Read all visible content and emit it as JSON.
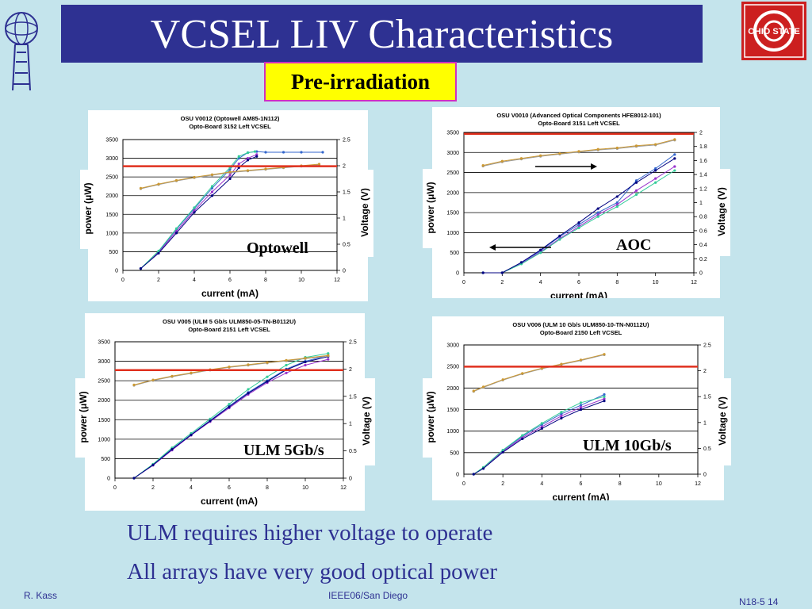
{
  "slide": {
    "title": "VCSEL LIV Characteristics",
    "subtitle": "Pre-irradiation",
    "bullets": [
      "ULM requires higher voltage to operate",
      "All arrays have very good optical power"
    ],
    "footer_left": "R. Kass",
    "footer_center": "IEEE06/San Diego",
    "footer_right": "N18-5 14",
    "logo_text": "OHIO STATE"
  },
  "chart_data": [
    {
      "type": "line",
      "title": "OSU V0012 (Optowell AM85-1N112)",
      "subtitle": "Opto-Board 3152 Left VCSEL",
      "tag": "Optowell",
      "xlabel": "current (mA)",
      "ylabel": "power (μW)",
      "y2label": "Voltage (V)",
      "xlim": [
        0,
        12
      ],
      "ylim": [
        0,
        3500
      ],
      "y2lim": [
        0,
        2.5
      ],
      "xticks": [
        "0",
        "2",
        "4",
        "6",
        "8",
        "10",
        "12"
      ],
      "yticks": [
        "0",
        "500",
        "1000",
        "1500",
        "2000",
        "2500",
        "3000",
        "3500"
      ],
      "y2ticks": [
        "0",
        "0.5",
        "1",
        "1.5",
        "2",
        "2.5"
      ],
      "threshold_line_y2": 1.99,
      "series": [
        {
          "axis": "y",
          "x": [
            1,
            2,
            3,
            4,
            5,
            6,
            6.5,
            7,
            7.5,
            8,
            9,
            10,
            11.2
          ],
          "y": [
            50,
            500,
            1100,
            1650,
            2200,
            2700,
            3000,
            3150,
            3180,
            3160,
            3160,
            3160,
            3160
          ]
        },
        {
          "axis": "y",
          "x": [
            1,
            2,
            3,
            4,
            5,
            6,
            6.5,
            7,
            7.5
          ],
          "y": [
            50,
            480,
            1050,
            1600,
            2100,
            2550,
            2850,
            3000,
            3100
          ]
        },
        {
          "axis": "y",
          "x": [
            1,
            2,
            3,
            4,
            5,
            6,
            6.5,
            7,
            7.4
          ],
          "y": [
            50,
            520,
            1120,
            1680,
            2250,
            2750,
            3050,
            3150,
            3180
          ]
        },
        {
          "axis": "y",
          "x": [
            1,
            2,
            3,
            4,
            5,
            6,
            6.5,
            7,
            7.5
          ],
          "y": [
            50,
            460,
            1000,
            1550,
            2000,
            2450,
            2750,
            2950,
            3050
          ]
        },
        {
          "axis": "y2",
          "x": [
            1,
            2,
            3,
            4,
            5,
            6,
            7,
            8,
            9,
            10,
            11
          ],
          "y": [
            1.56,
            1.64,
            1.71,
            1.77,
            1.82,
            1.87,
            1.9,
            1.93,
            1.96,
            1.99,
            2.02
          ]
        },
        {
          "axis": "y2",
          "x": [
            1,
            2,
            3,
            4,
            5,
            6,
            7,
            8,
            9,
            10,
            11
          ],
          "y": [
            1.57,
            1.65,
            1.72,
            1.78,
            1.83,
            1.88,
            1.91,
            1.94,
            1.97,
            2.0,
            2.03
          ]
        }
      ]
    },
    {
      "type": "line",
      "title": "OSU V0010 (Advanced Optical Components HFE8012-101)",
      "subtitle": "Opto-Board 3151 Left VCSEL",
      "tag": "AOC",
      "xlabel": "current (mA)",
      "ylabel": "power (μW)",
      "y2label": "Voltage (V)",
      "xlim": [
        0,
        12
      ],
      "ylim": [
        0,
        3500
      ],
      "y2lim": [
        0,
        2
      ],
      "xticks": [
        "0",
        "2",
        "4",
        "6",
        "8",
        "10",
        "12"
      ],
      "yticks": [
        "0",
        "500",
        "1000",
        "1500",
        "2000",
        "2500",
        "3000",
        "3500"
      ],
      "y2ticks": [
        "0",
        "0.2",
        "0.4",
        "0.6",
        "0.8",
        "1",
        "1.2",
        "1.4",
        "1.6",
        "1.8",
        "2"
      ],
      "threshold_line_y2": 1.98,
      "series": [
        {
          "axis": "y",
          "x": [
            1,
            2,
            3,
            4,
            5,
            6,
            7,
            8,
            9,
            10,
            11
          ],
          "y": [
            0,
            0,
            250,
            550,
            900,
            1200,
            1500,
            1750,
            2300,
            2600,
            2950
          ]
        },
        {
          "axis": "y",
          "x": [
            1,
            2,
            3,
            4,
            5,
            6,
            7,
            8,
            9,
            10,
            11
          ],
          "y": [
            0,
            0,
            230,
            520,
            850,
            1150,
            1450,
            1700,
            2050,
            2350,
            2650
          ]
        },
        {
          "axis": "y",
          "x": [
            1,
            2,
            3,
            4,
            5,
            6,
            7,
            8,
            9,
            10,
            11
          ],
          "y": [
            0,
            0,
            220,
            500,
            830,
            1120,
            1400,
            1650,
            1950,
            2250,
            2550
          ]
        },
        {
          "axis": "y",
          "x": [
            1,
            2,
            3,
            4,
            5,
            6,
            7,
            8,
            9,
            10,
            11
          ],
          "y": [
            0,
            0,
            260,
            570,
            920,
            1250,
            1600,
            1900,
            2250,
            2550,
            2850
          ]
        },
        {
          "axis": "y2",
          "x": [
            1,
            2,
            3,
            4,
            5,
            6,
            7,
            8,
            9,
            10,
            11
          ],
          "y": [
            1.52,
            1.58,
            1.62,
            1.66,
            1.69,
            1.72,
            1.75,
            1.77,
            1.8,
            1.82,
            1.89
          ]
        },
        {
          "axis": "y2",
          "x": [
            1,
            2,
            3,
            4,
            5,
            6,
            7,
            8,
            9,
            10,
            11
          ],
          "y": [
            1.53,
            1.59,
            1.63,
            1.67,
            1.7,
            1.73,
            1.76,
            1.78,
            1.81,
            1.83,
            1.9
          ]
        }
      ]
    },
    {
      "type": "line",
      "title": "OSU V005 (ULM 5 Gb/s ULM850-05-TN-B0112U)",
      "subtitle": "Opto-Board 2151 Left VCSEL",
      "tag": "ULM 5Gb/s",
      "xlabel": "current (mA)",
      "ylabel": "power (μW)",
      "y2label": "Voltage (V)",
      "xlim": [
        0,
        12
      ],
      "ylim": [
        0,
        3500
      ],
      "y2lim": [
        0,
        2.5
      ],
      "xticks": [
        "0",
        "2",
        "4",
        "6",
        "8",
        "10",
        "12"
      ],
      "yticks": [
        "0",
        "500",
        "1000",
        "1500",
        "2000",
        "2500",
        "3000",
        "3500"
      ],
      "y2ticks": [
        "0",
        "0.5",
        "1",
        "1.5",
        "2",
        "2.5"
      ],
      "threshold_line_y2": 1.98,
      "series": [
        {
          "axis": "y",
          "x": [
            1,
            2,
            3,
            4,
            5,
            6,
            7,
            8,
            9,
            10,
            11.2
          ],
          "y": [
            0,
            350,
            750,
            1120,
            1480,
            1850,
            2200,
            2500,
            2800,
            3000,
            3150
          ]
        },
        {
          "axis": "y",
          "x": [
            1,
            2,
            3,
            4,
            5,
            6,
            7,
            8,
            9,
            10,
            11.2
          ],
          "y": [
            0,
            330,
            720,
            1100,
            1450,
            1800,
            2150,
            2450,
            2700,
            2900,
            3050
          ]
        },
        {
          "axis": "y",
          "x": [
            1,
            2,
            3,
            4,
            5,
            6,
            7,
            8,
            9,
            10,
            11.2
          ],
          "y": [
            0,
            360,
            780,
            1150,
            1520,
            1900,
            2280,
            2600,
            2900,
            3100,
            3200
          ]
        },
        {
          "axis": "y",
          "x": [
            1,
            2,
            3,
            4,
            5,
            6,
            7,
            8,
            9,
            10,
            11.2
          ],
          "y": [
            0,
            340,
            740,
            1110,
            1470,
            1830,
            2180,
            2480,
            2780,
            2980,
            3120
          ]
        },
        {
          "axis": "y2",
          "x": [
            1,
            2,
            3,
            4,
            5,
            6,
            7,
            8,
            9,
            10,
            11.2
          ],
          "y": [
            1.7,
            1.79,
            1.86,
            1.92,
            1.98,
            2.03,
            2.07,
            2.11,
            2.15,
            2.19,
            2.24
          ]
        },
        {
          "axis": "y2",
          "x": [
            1,
            2,
            3,
            4,
            5,
            6,
            7,
            8,
            9,
            10,
            11.2
          ],
          "y": [
            1.71,
            1.8,
            1.87,
            1.93,
            1.99,
            2.04,
            2.08,
            2.12,
            2.16,
            2.2,
            2.25
          ]
        }
      ]
    },
    {
      "type": "line",
      "title": "OSU V006 (ULM 10 Gb/s ULM850-10-TN-N0112U)",
      "subtitle": "Opto-Board 2150 Left VCSEL",
      "tag": "ULM 10Gb/s",
      "xlabel": "current (mA)",
      "ylabel": "power (μW)",
      "y2label": "Voltage (V)",
      "xlim": [
        0,
        12
      ],
      "ylim": [
        0,
        3000
      ],
      "y2lim": [
        0,
        2.5
      ],
      "xticks": [
        "0",
        "2",
        "4",
        "6",
        "8",
        "10",
        "12"
      ],
      "yticks": [
        "0",
        "500",
        "1000",
        "1500",
        "2000",
        "2500",
        "3000"
      ],
      "y2ticks": [
        "0",
        "0.5",
        "1",
        "1.5",
        "2",
        "2.5"
      ],
      "threshold_line_y2": 2.08,
      "series": [
        {
          "axis": "y",
          "x": [
            0.5,
            1,
            2,
            3,
            4,
            5,
            6,
            7.2
          ],
          "y": [
            0,
            150,
            550,
            880,
            1150,
            1400,
            1600,
            1850
          ]
        },
        {
          "axis": "y",
          "x": [
            0.5,
            1,
            2,
            3,
            4,
            5,
            6,
            7.2
          ],
          "y": [
            0,
            140,
            530,
            850,
            1100,
            1350,
            1550,
            1750
          ]
        },
        {
          "axis": "y",
          "x": [
            0.5,
            1,
            2,
            3,
            4,
            5,
            6,
            7.2
          ],
          "y": [
            0,
            160,
            560,
            900,
            1180,
            1440,
            1660,
            1800
          ]
        },
        {
          "axis": "y",
          "x": [
            0.5,
            1,
            2,
            3,
            4,
            5,
            6,
            7.2
          ],
          "y": [
            0,
            130,
            510,
            820,
            1060,
            1300,
            1500,
            1700
          ]
        },
        {
          "axis": "y2",
          "x": [
            0.5,
            1,
            2,
            3,
            4,
            5,
            6,
            7.2
          ],
          "y": [
            1.6,
            1.68,
            1.82,
            1.94,
            2.04,
            2.12,
            2.2,
            2.31
          ]
        },
        {
          "axis": "y2",
          "x": [
            0.5,
            1,
            2,
            3,
            4,
            5,
            6,
            7.2
          ],
          "y": [
            1.61,
            1.69,
            1.83,
            1.95,
            2.05,
            2.13,
            2.21,
            2.32
          ]
        }
      ]
    }
  ]
}
